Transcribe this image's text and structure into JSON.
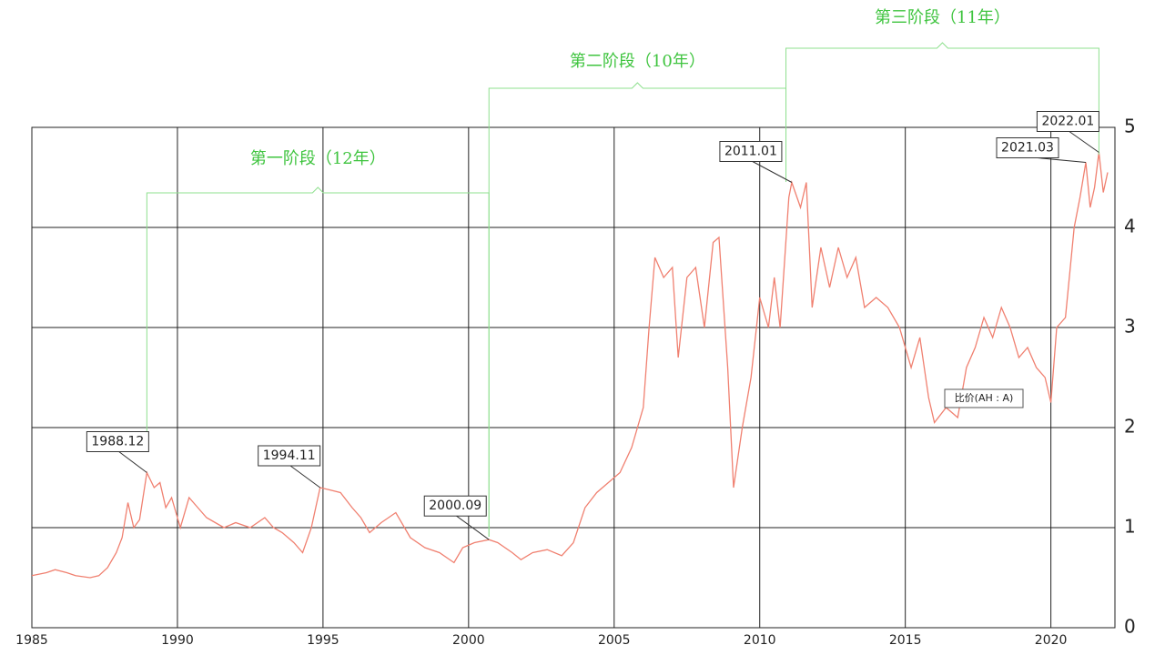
{
  "chart_data": {
    "type": "line",
    "xlim": [
      1985,
      2022.2
    ],
    "ylim": [
      0,
      5
    ],
    "xticks": [
      1985,
      1990,
      1995,
      2000,
      2005,
      2010,
      2015,
      2020
    ],
    "yticks": [
      0,
      1,
      2,
      3,
      4,
      5
    ],
    "grid": true,
    "series": [
      {
        "name": "比价(AH : A)",
        "color": "#f08070",
        "x": [
          1985.0,
          1985.5,
          1985.8,
          1986.2,
          1986.5,
          1987.0,
          1987.3,
          1987.6,
          1987.9,
          1988.1,
          1988.3,
          1988.5,
          1988.7,
          1988.95,
          1989.2,
          1989.4,
          1989.6,
          1989.8,
          1990.1,
          1990.4,
          1990.7,
          1991.0,
          1991.3,
          1991.6,
          1992.0,
          1992.5,
          1993.0,
          1993.3,
          1993.6,
          1994.0,
          1994.3,
          1994.6,
          1994.9,
          1995.2,
          1995.6,
          1996.0,
          1996.3,
          1996.6,
          1997.0,
          1997.5,
          1998.0,
          1998.5,
          1999.0,
          1999.5,
          1999.8,
          2000.2,
          2000.7,
          2001.0,
          2001.5,
          2001.8,
          2002.2,
          2002.7,
          2003.2,
          2003.6,
          2004.0,
          2004.4,
          2004.8,
          2005.2,
          2005.6,
          2006.0,
          2006.2,
          2006.4,
          2006.7,
          2007.0,
          2007.2,
          2007.5,
          2007.8,
          2008.1,
          2008.4,
          2008.6,
          2008.9,
          2009.1,
          2009.4,
          2009.7,
          2010.0,
          2010.3,
          2010.5,
          2010.7,
          2011.0,
          2011.1,
          2011.4,
          2011.6,
          2011.8,
          2012.1,
          2012.4,
          2012.7,
          2013.0,
          2013.3,
          2013.6,
          2014.0,
          2014.4,
          2014.8,
          2015.2,
          2015.5,
          2015.8,
          2016.0,
          2016.4,
          2016.8,
          2017.1,
          2017.4,
          2017.7,
          2018.0,
          2018.3,
          2018.6,
          2018.9,
          2019.2,
          2019.5,
          2019.8,
          2020.0,
          2020.2,
          2020.5,
          2020.8,
          2021.0,
          2021.2,
          2021.35,
          2021.5,
          2021.65,
          2021.8,
          2021.95
        ],
        "values": [
          0.52,
          0.55,
          0.58,
          0.55,
          0.52,
          0.5,
          0.52,
          0.6,
          0.75,
          0.9,
          1.25,
          1.0,
          1.08,
          1.55,
          1.4,
          1.45,
          1.2,
          1.3,
          1.0,
          1.3,
          1.2,
          1.1,
          1.05,
          1.0,
          1.05,
          1.0,
          1.1,
          1.0,
          0.95,
          0.85,
          0.75,
          1.0,
          1.4,
          1.38,
          1.35,
          1.2,
          1.1,
          0.95,
          1.05,
          1.15,
          0.9,
          0.8,
          0.75,
          0.65,
          0.8,
          0.85,
          0.88,
          0.85,
          0.75,
          0.68,
          0.75,
          0.78,
          0.72,
          0.85,
          1.2,
          1.35,
          1.45,
          1.55,
          1.8,
          2.2,
          3.0,
          3.7,
          3.5,
          3.6,
          2.7,
          3.5,
          3.6,
          3.0,
          3.85,
          3.9,
          2.6,
          1.4,
          2.0,
          2.5,
          3.3,
          3.0,
          3.5,
          3.0,
          4.3,
          4.45,
          4.2,
          4.45,
          3.2,
          3.8,
          3.4,
          3.8,
          3.5,
          3.7,
          3.2,
          3.3,
          3.2,
          3.0,
          2.6,
          2.9,
          2.3,
          2.05,
          2.2,
          2.1,
          2.6,
          2.8,
          3.1,
          2.9,
          3.2,
          3.0,
          2.7,
          2.8,
          2.6,
          2.5,
          2.25,
          3.0,
          3.1,
          4.0,
          4.3,
          4.65,
          4.2,
          4.4,
          4.75,
          4.35,
          4.55
        ]
      }
    ],
    "annotations": [
      {
        "label": "1988.12",
        "x": 1988.95,
        "y": 1.55
      },
      {
        "label": "1994.11",
        "x": 1994.9,
        "y": 1.4
      },
      {
        "label": "2000.09",
        "x": 2000.7,
        "y": 0.88
      },
      {
        "label": "2011.01",
        "x": 2011.1,
        "y": 4.45
      },
      {
        "label": "2021.03",
        "x": 2021.2,
        "y": 4.65
      },
      {
        "label": "2022.01",
        "x": 2021.65,
        "y": 4.75
      }
    ],
    "stages": [
      {
        "label": "第一阶段（12年）",
        "start": 1988.95,
        "end": 2000.7
      },
      {
        "label": "第二阶段（10年）",
        "start": 2000.7,
        "end": 2010.9
      },
      {
        "label": "第三阶段（11年）",
        "start": 2010.9,
        "end": 2021.65
      }
    ]
  }
}
